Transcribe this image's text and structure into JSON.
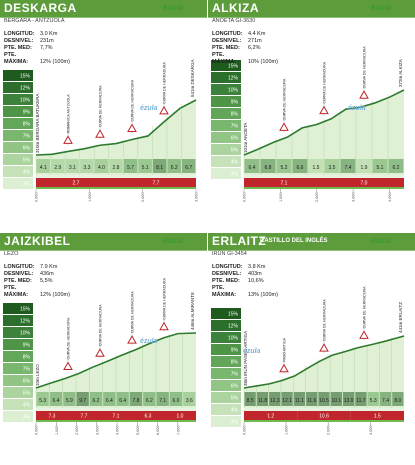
{
  "colors": {
    "header": "#5c9c3a",
    "brand": "#3d9a2f",
    "profile_line": "#2e7a2e",
    "strip_red": "#c0262b",
    "strip_green": "#6dba4e"
  },
  "brand": "ézula",
  "legend_grades": [
    "15%",
    "12%",
    "10%",
    "9%",
    "8%",
    "7%",
    "6%",
    "5%",
    "4%",
    "3%"
  ],
  "panels": [
    {
      "title": "DESKARGA",
      "title_extra": "",
      "subtitle": "BERGARA - ANTZUOLA",
      "stats": [
        {
          "label": "LONGITUD:",
          "value": "3.0 Km"
        },
        {
          "label": "DESNIVEL:",
          "value": "231m"
        },
        {
          "label": "PTE. MED:",
          "value": "7,7%"
        },
        {
          "label": "PTE. MÁXIMA:",
          "value": "12% (100m)"
        }
      ]
    },
    {
      "title": "ALKIZA",
      "title_extra": "",
      "subtitle": "ANOETA GI-3630",
      "stats": [
        {
          "label": "LONGITUD:",
          "value": "4.4 Km"
        },
        {
          "label": "DESNIVEL:",
          "value": "271m"
        },
        {
          "label": "PTE. MED:",
          "value": "6,2%"
        },
        {
          "label": "PTE. MÁXIMA:",
          "value": "10% (100m)"
        }
      ]
    },
    {
      "title": "JAIZKIBEL",
      "title_extra": "",
      "subtitle": "LEZO",
      "stats": [
        {
          "label": "LONGITUD:",
          "value": "7.9 Km"
        },
        {
          "label": "DESNIVEL:",
          "value": "436m"
        },
        {
          "label": "PTE. MED:",
          "value": "5,5%"
        },
        {
          "label": "PTE. MÁXIMA:",
          "value": "12% (100m)"
        }
      ]
    },
    {
      "title": "ERLAITZ",
      "title_extra": "CASTILLO DEL INGLÉS",
      "subtitle": "IRÚN GI-3454",
      "stats": [
        {
          "label": "LONGITUD:",
          "value": "3.8 Km"
        },
        {
          "label": "DESNIVEL:",
          "value": "403m"
        },
        {
          "label": "PTE. MED:",
          "value": "10,6%"
        },
        {
          "label": "PTE. MÁXIMA:",
          "value": "13% (100m)"
        }
      ]
    }
  ],
  "chart_data": [
    {
      "type": "area",
      "title": "DESKARGA",
      "x": [
        0,
        0.3,
        0.6,
        0.9,
        1.2,
        1.5,
        1.8,
        2.1,
        2.4,
        2.7,
        3.0
      ],
      "y": [
        310,
        313,
        325,
        336,
        351,
        358,
        375,
        390,
        449,
        506,
        541
      ],
      "segment_grades": [
        "4.1",
        "2.9",
        "3.1",
        "3.3",
        "4.0",
        "2.8",
        "5.7",
        "5.1",
        "8.1",
        "6.2",
        "6.7"
      ],
      "start_label": "310m BERGARA BATUKERA",
      "end_label": "541m DESKARGA",
      "waypoints": [
        "ROMANICA ANTZUOLA",
        "CURVA DE HERRADURA",
        "CURVA DE HERRADURA",
        "CURVA DE HERRADURA"
      ],
      "strip": [
        "2.7",
        "7.7"
      ],
      "km_marks": [
        "0.000",
        "1.000",
        "2.000",
        "3.000"
      ]
    },
    {
      "type": "area",
      "title": "ALKIZA",
      "x": [
        0,
        0.4,
        0.8,
        1.2,
        1.6,
        2.0,
        2.4,
        2.8,
        3.2,
        3.6,
        4.0,
        4.4
      ],
      "y": [
        101,
        126,
        153,
        176,
        214,
        228,
        252,
        292,
        300,
        318,
        342,
        372
      ],
      "segment_grades": [
        "6.4",
        "6.8",
        "5.2",
        "6.6",
        "1.5",
        "3.5",
        "7.4",
        "1.9",
        "5.1",
        "6.2"
      ],
      "start_label": "101m ANOETA",
      "end_label": "372m ALKIZA",
      "waypoints": [
        "CURVA DE HERRADURA",
        "CURVA DE HERRADURA",
        "CURVA DE HERRADURA"
      ],
      "strip": [
        "7.1",
        "7.0"
      ],
      "km_marks": [
        "0.000",
        "1.000",
        "2.000",
        "3.000",
        "4.000"
      ]
    },
    {
      "type": "area",
      "title": "JAIZKIBEL",
      "x": [
        0,
        0.7,
        1.4,
        2.1,
        2.8,
        3.5,
        4.2,
        4.9,
        5.6,
        6.3,
        7.0,
        7.9
      ],
      "y": [
        10,
        48,
        83,
        124,
        175,
        220,
        268,
        312,
        362,
        407,
        441,
        446
      ],
      "segment_grades": [
        "5.3",
        "6.4",
        "5.9",
        "9.7",
        "6.2",
        "6.4",
        "6.4",
        "7.8",
        "6.2",
        "7.1",
        "6.0",
        "3.6"
      ],
      "start_label": "10m LEZO",
      "end_label": "446m ALMIRANTE",
      "waypoints": [
        "CURVA DE HERRADURA",
        "CURVA DE HERRADURA",
        "CURVA DE HERRADURA",
        "CURVA DE HERRADURA"
      ],
      "strip": [
        "7.3",
        "7.7",
        "7.1",
        "6.3",
        "1.0"
      ],
      "km_marks": [
        "0.000",
        "1.000",
        "2.000",
        "3.000",
        "4.000",
        "5.000",
        "6.000",
        "7.000"
      ]
    },
    {
      "type": "area",
      "title": "ERLAITZ",
      "x": [
        0,
        0.3,
        0.6,
        0.9,
        1.2,
        1.5,
        1.8,
        2.1,
        2.4,
        2.7,
        3.0,
        3.3,
        3.8
      ],
      "y": [
        38,
        54,
        70,
        96,
        131,
        190,
        246,
        293,
        320,
        350,
        372,
        396,
        441
      ],
      "segment_grades": [
        "8.5",
        "11.8",
        "12.3",
        "12.1",
        "11.1",
        "11.6",
        "10.5",
        "10.1",
        "13.0",
        "11.7",
        "5.3",
        "7.4",
        "8.0"
      ],
      "start_label": "38m IRÚN PASEO ARTIGA",
      "end_label": "441m ERLAITZ",
      "waypoints": [
        "PASO ARTIGA",
        "CURVA DE HERRADURA",
        "CURVA DE HERRADURA"
      ],
      "strip": [
        "1.2",
        "10.6",
        "1.5"
      ],
      "km_marks": [
        "0.000",
        "1.000",
        "2.000",
        "3.000"
      ]
    }
  ]
}
